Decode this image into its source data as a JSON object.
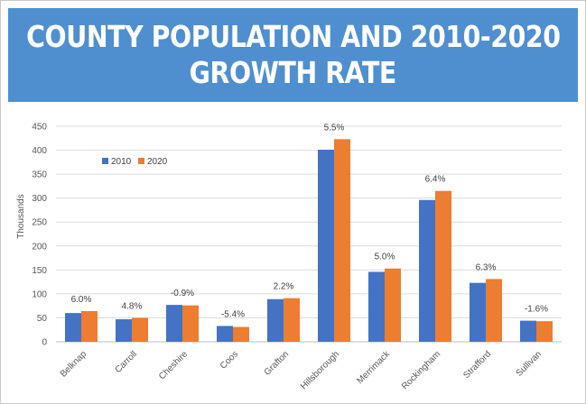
{
  "header": {
    "title_line1": "COUNTY POPULATION AND 2010-2020",
    "title_line2": "GROWTH RATE"
  },
  "chart_data": {
    "type": "bar",
    "title": "COUNTY POPULATION AND 2010-2020 GROWTH RATE",
    "ylabel": "Thousands",
    "xlabel": "",
    "ylim": [
      0,
      450
    ],
    "yticks": [
      0,
      50,
      100,
      150,
      200,
      250,
      300,
      350,
      400,
      450
    ],
    "grid": true,
    "legend_position": "top-left",
    "categories": [
      "Belknap",
      "Carroll",
      "Cheshire",
      "Coos",
      "Grafton",
      "Hillsborough",
      "Merrimack",
      "Rockingham",
      "Strafford",
      "Sullivan"
    ],
    "series": [
      {
        "name": "2010",
        "color": "#4472c4",
        "values": [
          60,
          47,
          77,
          33,
          89,
          401,
          146,
          296,
          123,
          44
        ]
      },
      {
        "name": "2020",
        "color": "#ed7d31",
        "values": [
          64,
          50,
          76,
          31,
          91,
          423,
          153,
          315,
          131,
          43
        ]
      }
    ],
    "growth_labels": [
      "6.0%",
      "4.8%",
      "-0.9%",
      "-5.4%",
      "2.2%",
      "5.5%",
      "5.0%",
      "6.4%",
      "6.3%",
      "-1.6%"
    ]
  }
}
